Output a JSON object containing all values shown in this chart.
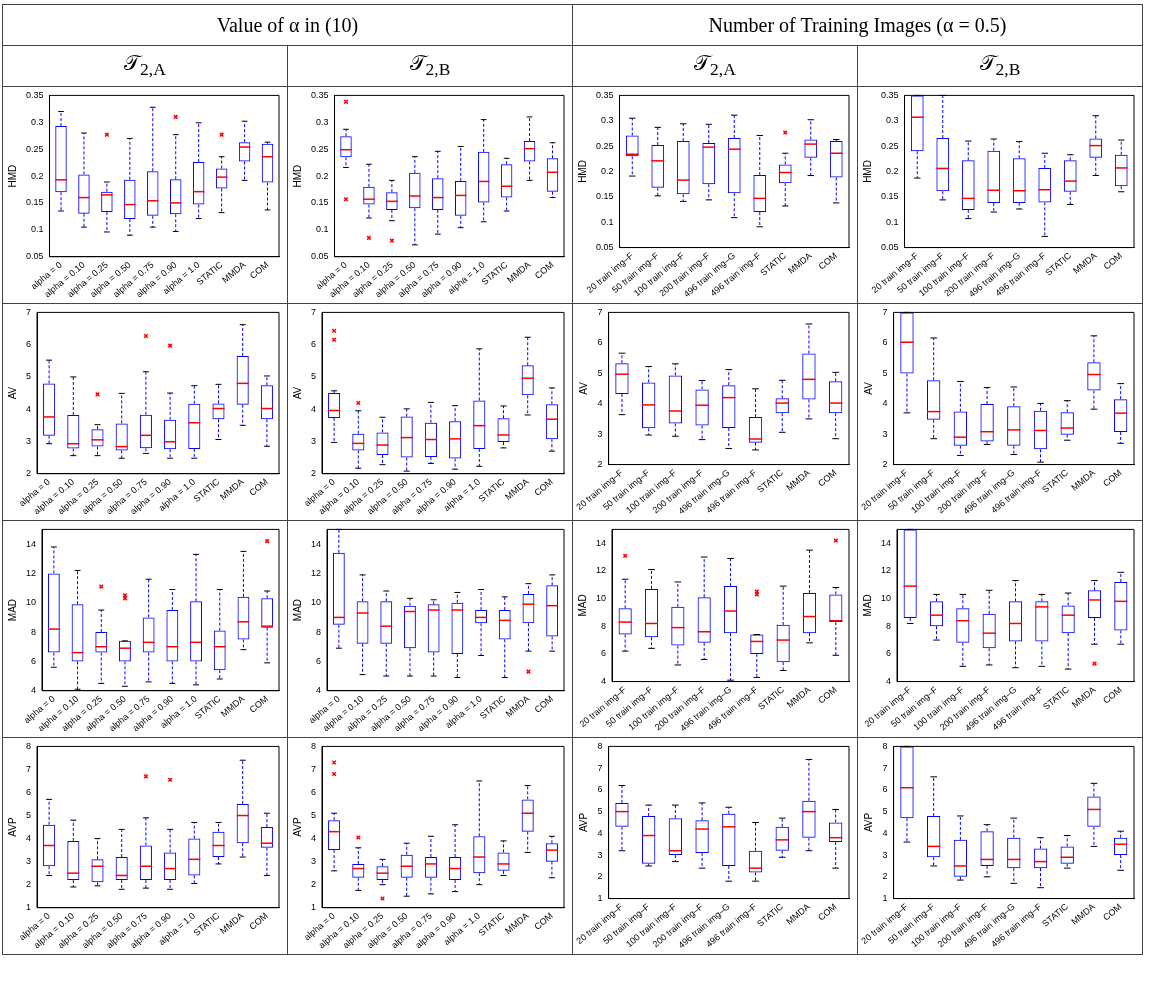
{
  "chart_data": [
    {
      "type": "box",
      "title": "𝒯$_{2,A}$",
      "subtitle": "Value of α in (10)",
      "ylabel": "HMD",
      "categories": [
        "alpha = 0",
        "alpha = 0.10",
        "alpha = 0.25",
        "alpha = 0.50",
        "alpha = 0.75",
        "alpha = 0.90",
        "alpha = 1.0",
        "STATIC",
        "MMDA",
        "COM"
      ],
      "ylim": [
        0.05,
        0.35
      ],
      "yticks": [
        0.05,
        0.1,
        0.15,
        0.2,
        0.25,
        0.3,
        0.35
      ],
      "grid": false,
      "legend": false,
      "series": [
        {
          "color": "#0000ff",
          "boxes": [
            {
              "low": 0.135,
              "q1": 0.17,
              "median": 0.193,
              "q3": 0.293,
              "high": 0.32
            },
            {
              "low": 0.105,
              "q1": 0.13,
              "median": 0.16,
              "q3": 0.203,
              "high": 0.28
            },
            {
              "low": 0.096,
              "q1": 0.133,
              "median": 0.165,
              "q3": 0.171,
              "high": 0.189,
              "outliers": [
                0.277
              ]
            },
            {
              "low": 0.09,
              "q1": 0.12,
              "median": 0.147,
              "q3": 0.193,
              "high": 0.27
            },
            {
              "low": 0.105,
              "q1": 0.126,
              "median": 0.154,
              "q3": 0.209,
              "high": 0.328
            },
            {
              "low": 0.097,
              "q1": 0.129,
              "median": 0.15,
              "q3": 0.194,
              "high": 0.277,
              "outliers": [
                0.31
              ]
            },
            {
              "low": 0.121,
              "q1": 0.147,
              "median": 0.171,
              "q3": 0.226,
              "high": 0.299
            },
            {
              "low": 0.132,
              "q1": 0.177,
              "median": 0.198,
              "q3": 0.214,
              "high": 0.236,
              "outliers": [
                0.277
              ]
            },
            {
              "low": 0.192,
              "q1": 0.227,
              "median": 0.254,
              "q3": 0.263,
              "high": 0.302
            },
            {
              "low": 0.137,
              "q1": 0.188,
              "median": 0.236,
              "q3": 0.26,
              "high": 0.263
            }
          ]
        }
      ]
    },
    {
      "type": "box",
      "title": "𝒯$_{2,B}$",
      "ylabel": "HMD",
      "categories": [
        "alpha = 0",
        "alpha = 0.10",
        "alpha = 0.25",
        "alpha = 0.50",
        "alpha = 0.75",
        "alpha = 0.90",
        "alpha = 1.0",
        "STATIC",
        "MMDA",
        "COM"
      ],
      "ylim": [
        0.05,
        0.35
      ],
      "yticks": [
        0.05,
        0.1,
        0.15,
        0.2,
        0.25,
        0.3,
        0.35
      ],
      "grid": false,
      "legend": false,
      "series": [
        {
          "color": "#0000ff",
          "boxes": [
            {
              "low": 0.216,
              "q1": 0.235,
              "median": 0.249,
              "q3": 0.274,
              "high": 0.287,
              "outliers": [
                0.338,
                0.157
              ]
            },
            {
              "low": 0.122,
              "q1": 0.147,
              "median": 0.157,
              "q3": 0.18,
              "high": 0.222,
              "outliers": [
                0.085
              ]
            },
            {
              "low": 0.117,
              "q1": 0.137,
              "median": 0.153,
              "q3": 0.17,
              "high": 0.192,
              "outliers": [
                0.08
              ]
            },
            {
              "low": 0.072,
              "q1": 0.14,
              "median": 0.163,
              "q3": 0.206,
              "high": 0.236
            },
            {
              "low": 0.092,
              "q1": 0.137,
              "median": 0.16,
              "q3": 0.196,
              "high": 0.246
            },
            {
              "low": 0.104,
              "q1": 0.126,
              "median": 0.164,
              "q3": 0.191,
              "high": 0.255
            },
            {
              "low": 0.115,
              "q1": 0.151,
              "median": 0.19,
              "q3": 0.245,
              "high": 0.305
            },
            {
              "low": 0.135,
              "q1": 0.16,
              "median": 0.181,
              "q3": 0.222,
              "high": 0.233
            },
            {
              "low": 0.192,
              "q1": 0.227,
              "median": 0.251,
              "q3": 0.265,
              "high": 0.31
            },
            {
              "low": 0.16,
              "q1": 0.171,
              "median": 0.207,
              "q3": 0.233,
              "high": 0.262
            }
          ]
        }
      ]
    },
    {
      "type": "box",
      "title": "𝒯$_{2,A}$",
      "subtitle": "Number of Training Images (α = 0.5)",
      "ylabel": "HMD",
      "categories": [
        "20 train img–F",
        "50 train img–F",
        "100 train img–F",
        "200 train img–F",
        "496 train img–G",
        "496 train img–F",
        "STATIC",
        "MMDA",
        "COM"
      ],
      "ylim": [
        0.05,
        0.35
      ],
      "yticks": [
        0.05,
        0.1,
        0.15,
        0.2,
        0.25,
        0.3,
        0.35
      ],
      "grid": false,
      "legend": false,
      "series": [
        {
          "color": "#0000ff",
          "boxes": [
            {
              "low": 0.191,
              "q1": 0.23,
              "median": 0.234,
              "q3": 0.271,
              "high": 0.305
            },
            {
              "low": 0.152,
              "q1": 0.168,
              "median": 0.221,
              "q3": 0.252,
              "high": 0.287
            },
            {
              "low": 0.141,
              "q1": 0.155,
              "median": 0.183,
              "q3": 0.26,
              "high": 0.294
            },
            {
              "low": 0.144,
              "q1": 0.175,
              "median": 0.248,
              "q3": 0.256,
              "high": 0.293
            },
            {
              "low": 0.109,
              "q1": 0.157,
              "median": 0.244,
              "q3": 0.266,
              "high": 0.311
            },
            {
              "low": 0.091,
              "q1": 0.12,
              "median": 0.147,
              "q3": 0.193,
              "high": 0.271
            },
            {
              "low": 0.132,
              "q1": 0.177,
              "median": 0.198,
              "q3": 0.214,
              "high": 0.236,
              "outliers": [
                0.277
              ]
            },
            {
              "low": 0.192,
              "q1": 0.227,
              "median": 0.254,
              "q3": 0.263,
              "high": 0.302
            },
            {
              "low": 0.138,
              "q1": 0.188,
              "median": 0.236,
              "q3": 0.26,
              "high": 0.263
            }
          ]
        }
      ]
    },
    {
      "type": "box",
      "title": "𝒯$_{2,B}$",
      "ylabel": "HMD",
      "categories": [
        "20 train img–F",
        "50 train img–F",
        "100 train img–F",
        "200 train img–F",
        "496 train img–G",
        "496 train img–F",
        "STATIC",
        "MMDA",
        "COM"
      ],
      "ylim": [
        0.05,
        0.35
      ],
      "yticks": [
        0.05,
        0.1,
        0.15,
        0.2,
        0.25,
        0.3,
        0.35
      ],
      "grid": false,
      "legend": false,
      "series": [
        {
          "color": "#0000ff",
          "boxes": [
            {
              "low": 0.187,
              "q1": 0.24,
              "median": 0.307,
              "q3": 0.35,
              "high": 0.35
            },
            {
              "low": 0.144,
              "q1": 0.161,
              "median": 0.206,
              "q3": 0.266,
              "high": 0.35
            },
            {
              "low": 0.107,
              "q1": 0.124,
              "median": 0.147,
              "q3": 0.222,
              "high": 0.26
            },
            {
              "low": 0.12,
              "q1": 0.138,
              "median": 0.163,
              "q3": 0.241,
              "high": 0.264
            },
            {
              "low": 0.126,
              "q1": 0.138,
              "median": 0.162,
              "q3": 0.226,
              "high": 0.259
            },
            {
              "low": 0.072,
              "q1": 0.139,
              "median": 0.164,
              "q3": 0.207,
              "high": 0.236
            },
            {
              "low": 0.135,
              "q1": 0.16,
              "median": 0.181,
              "q3": 0.222,
              "high": 0.233
            },
            {
              "low": 0.192,
              "q1": 0.227,
              "median": 0.251,
              "q3": 0.265,
              "high": 0.31
            },
            {
              "low": 0.16,
              "q1": 0.171,
              "median": 0.207,
              "q3": 0.233,
              "high": 0.262
            }
          ]
        }
      ]
    },
    {
      "type": "box",
      "ylabel": "AV",
      "categories": [
        "alpha = 0",
        "alpha = 0.10",
        "alpha = 0.25",
        "alpha = 0.50",
        "alpha = 0.75",
        "alpha = 0.90",
        "alpha = 1.0",
        "STATIC",
        "MMDA",
        "COM"
      ],
      "ylim": [
        2,
        7
      ],
      "yticks": [
        2,
        3,
        4,
        5,
        6,
        7
      ],
      "grid": false,
      "legend": false,
      "series": [
        {
          "color": "#0000ff",
          "boxes": [
            {
              "low": 2.93,
              "q1": 3.18,
              "median": 3.76,
              "q3": 4.8,
              "high": 5.52
            },
            {
              "low": 2.56,
              "q1": 2.78,
              "median": 2.93,
              "q3": 3.82,
              "high": 5.0
            },
            {
              "low": 2.56,
              "q1": 2.84,
              "median": 3.05,
              "q3": 3.38,
              "high": 3.52,
              "outliers": [
                4.46
              ]
            },
            {
              "low": 2.48,
              "q1": 2.72,
              "median": 2.84,
              "q3": 3.56,
              "high": 4.49
            },
            {
              "low": 2.63,
              "q1": 2.79,
              "median": 3.19,
              "q3": 3.83,
              "high": 5.16,
              "outliers": [
                6.27
              ]
            },
            {
              "low": 2.48,
              "q1": 2.76,
              "median": 2.99,
              "q3": 3.67,
              "high": 4.5,
              "outliers": [
                5.97
              ]
            },
            {
              "low": 2.48,
              "q1": 2.77,
              "median": 3.58,
              "q3": 4.17,
              "high": 4.73
            },
            {
              "low": 3.06,
              "q1": 3.69,
              "median": 4.02,
              "q3": 4.18,
              "high": 4.77
            },
            {
              "low": 3.5,
              "q1": 4.14,
              "median": 4.8,
              "q3": 5.65,
              "high": 6.62
            },
            {
              "low": 2.85,
              "q1": 3.69,
              "median": 4.02,
              "q3": 4.74,
              "high": 5.03
            }
          ]
        }
      ]
    },
    {
      "type": "box",
      "ylabel": "AV",
      "categories": [
        "alpha = 0",
        "alpha = 0.10",
        "alpha = 0.25",
        "alpha = 0.50",
        "alpha = 0.75",
        "alpha = 0.90",
        "alpha = 1.0",
        "STATIC",
        "MMDA",
        "COM"
      ],
      "ylim": [
        2,
        7
      ],
      "yticks": [
        2,
        3,
        4,
        5,
        6,
        7
      ],
      "grid": false,
      "legend": false,
      "series": [
        {
          "color": "#0000ff",
          "boxes": [
            {
              "low": 2.97,
              "q1": 3.73,
              "median": 3.96,
              "q3": 4.5,
              "high": 4.57,
              "outliers": [
                6.43,
                6.15
              ]
            },
            {
              "low": 2.17,
              "q1": 2.72,
              "median": 2.94,
              "q3": 3.24,
              "high": 3.95,
              "outliers": [
                4.19
              ]
            },
            {
              "low": 2.28,
              "q1": 2.58,
              "median": 2.89,
              "q3": 3.28,
              "high": 3.75
            },
            {
              "low": 2.08,
              "q1": 2.5,
              "median": 3.12,
              "q3": 3.77,
              "high": 4.01
            },
            {
              "low": 2.32,
              "q1": 2.52,
              "median": 3.06,
              "q3": 3.58,
              "high": 4.21
            },
            {
              "low": 2.14,
              "q1": 2.47,
              "median": 3.08,
              "q3": 3.63,
              "high": 4.11
            },
            {
              "low": 2.23,
              "q1": 2.77,
              "median": 3.49,
              "q3": 4.27,
              "high": 5.87
            },
            {
              "low": 2.8,
              "q1": 2.98,
              "median": 3.2,
              "q3": 3.72,
              "high": 4.1
            },
            {
              "low": 3.82,
              "q1": 4.43,
              "median": 4.96,
              "q3": 5.36,
              "high": 6.23
            },
            {
              "low": 2.7,
              "q1": 3.07,
              "median": 3.69,
              "q3": 4.15,
              "high": 4.66
            }
          ]
        }
      ]
    },
    {
      "type": "box",
      "ylabel": "AV",
      "categories": [
        "20 train img–F",
        "50 train img–F",
        "100 train img–F",
        "200 train img–F",
        "496 train img–G",
        "496 train img–F",
        "STATIC",
        "MMDA",
        "COM"
      ],
      "ylim": [
        2,
        7
      ],
      "yticks": [
        2,
        3,
        4,
        5,
        6,
        7
      ],
      "grid": false,
      "legend": false,
      "series": [
        {
          "color": "#0000ff",
          "boxes": [
            {
              "low": 3.64,
              "q1": 4.32,
              "median": 4.97,
              "q3": 5.33,
              "high": 5.66
            },
            {
              "low": 2.97,
              "q1": 3.19,
              "median": 3.96,
              "q3": 4.7,
              "high": 5.22
            },
            {
              "low": 2.93,
              "q1": 3.35,
              "median": 3.76,
              "q3": 4.93,
              "high": 5.31
            },
            {
              "low": 2.82,
              "q1": 3.28,
              "median": 3.95,
              "q3": 4.47,
              "high": 4.76
            },
            {
              "low": 2.53,
              "q1": 3.2,
              "median": 4.2,
              "q3": 4.61,
              "high": 5.12
            },
            {
              "low": 2.48,
              "q1": 2.72,
              "median": 2.84,
              "q3": 3.56,
              "high": 4.49
            },
            {
              "low": 3.06,
              "q1": 3.69,
              "median": 4.02,
              "q3": 4.18,
              "high": 4.77
            },
            {
              "low": 3.5,
              "q1": 4.14,
              "median": 4.8,
              "q3": 5.65,
              "high": 6.62
            },
            {
              "low": 2.85,
              "q1": 3.69,
              "median": 4.02,
              "q3": 4.74,
              "high": 5.03
            }
          ]
        }
      ]
    },
    {
      "type": "box",
      "ylabel": "AV",
      "categories": [
        "20 train img–F",
        "50 train img–F",
        "100 train img–F",
        "200 train img–F",
        "496 train img–G",
        "496 train img–F",
        "STATIC",
        "MMDA",
        "COM"
      ],
      "ylim": [
        2,
        7
      ],
      "yticks": [
        2,
        3,
        4,
        5,
        6,
        7
      ],
      "grid": false,
      "legend": false,
      "series": [
        {
          "color": "#0000ff",
          "boxes": [
            {
              "low": 3.7,
              "q1": 4.99,
              "median": 6.02,
              "q3": 7,
              "high": 7
            },
            {
              "low": 2.85,
              "q1": 3.47,
              "median": 3.74,
              "q3": 4.77,
              "high": 6.16
            },
            {
              "low": 2.3,
              "q1": 2.62,
              "median": 2.9,
              "q3": 3.74,
              "high": 4.73
            },
            {
              "low": 2.66,
              "q1": 2.76,
              "median": 3.08,
              "q3": 3.99,
              "high": 4.53
            },
            {
              "low": 2.33,
              "q1": 2.62,
              "median": 3.14,
              "q3": 3.92,
              "high": 4.55
            },
            {
              "low": 2.08,
              "q1": 2.5,
              "median": 3.12,
              "q3": 3.77,
              "high": 4.01
            },
            {
              "low": 2.8,
              "q1": 2.98,
              "median": 3.2,
              "q3": 3.72,
              "high": 4.1
            },
            {
              "low": 3.82,
              "q1": 4.43,
              "median": 4.96,
              "q3": 5.36,
              "high": 6.23
            },
            {
              "low": 2.7,
              "q1": 3.07,
              "median": 3.69,
              "q3": 4.15,
              "high": 4.66
            }
          ]
        }
      ]
    },
    {
      "type": "box",
      "ylabel": "MAD",
      "categories": [
        "alpha = 0",
        "alpha = 0.10",
        "alpha = 0.25",
        "alpha = 0.50",
        "alpha = 0.75",
        "alpha = 0.90",
        "alpha = 1.0",
        "STATIC",
        "MMDA",
        "COM"
      ],
      "ylim": [
        4,
        15
      ],
      "yticks": [
        4,
        6,
        8,
        10,
        12,
        14
      ],
      "grid": false,
      "legend": false,
      "series": [
        {
          "color": "#0000ff",
          "boxes": [
            {
              "low": 5.6,
              "q1": 6.6,
              "median": 8.2,
              "q3": 12.0,
              "high": 13.8
            },
            {
              "low": 4.1,
              "q1": 6.0,
              "median": 6.6,
              "q3": 9.9,
              "high": 12.2
            },
            {
              "low": 4.5,
              "q1": 6.6,
              "median": 7.0,
              "q3": 8.0,
              "high": 9.5,
              "outliers": [
                11.1
              ]
            },
            {
              "low": 4.3,
              "q1": 6.0,
              "median": 6.9,
              "q3": 7.4,
              "high": 7.4,
              "outliers": [
                10.5,
                10.3
              ]
            },
            {
              "low": 4.6,
              "q1": 6.6,
              "median": 7.3,
              "q3": 9.0,
              "high": 11.6
            },
            {
              "low": 4.5,
              "q1": 6.0,
              "median": 7.0,
              "q3": 9.5,
              "high": 10.9
            },
            {
              "low": 4.4,
              "q1": 6.0,
              "median": 7.3,
              "q3": 10.1,
              "high": 13.3
            },
            {
              "low": 4.8,
              "q1": 5.4,
              "median": 7.0,
              "q3": 8.1,
              "high": 10.9
            },
            {
              "low": 6.8,
              "q1": 7.5,
              "median": 8.7,
              "q3": 10.4,
              "high": 13.5
            },
            {
              "low": 5.9,
              "q1": 8.3,
              "median": 8.4,
              "q3": 10.3,
              "high": 10.8,
              "outliers": [
                14.2
              ]
            }
          ]
        }
      ]
    },
    {
      "type": "box",
      "ylabel": "MAD",
      "categories": [
        "alpha = 0",
        "alpha = 0.10",
        "alpha = 0.25",
        "alpha = 0.50",
        "alpha = 0.75",
        "alpha = 0.90",
        "alpha = 1.0",
        "STATIC",
        "MMDA",
        "COM"
      ],
      "ylim": [
        4,
        15
      ],
      "yticks": [
        4,
        6,
        8,
        10,
        12,
        14
      ],
      "grid": false,
      "legend": false,
      "series": [
        {
          "color": "#0000ff",
          "boxes": [
            {
              "low": 6.9,
              "q1": 8.5,
              "median": 9.0,
              "q3": 13.4,
              "high": 15
            },
            {
              "low": 5.1,
              "q1": 7.2,
              "median": 9.3,
              "q3": 10.1,
              "high": 11.9
            },
            {
              "low": 5.0,
              "q1": 7.2,
              "median": 8.4,
              "q3": 10.1,
              "high": 10.8
            },
            {
              "low": 5.0,
              "q1": 6.9,
              "median": 9.4,
              "q3": 9.8,
              "high": 10.3
            },
            {
              "low": 5.0,
              "q1": 6.6,
              "median": 9.5,
              "q3": 9.9,
              "high": 10.2
            },
            {
              "low": 4.9,
              "q1": 6.5,
              "median": 9.5,
              "q3": 10.0,
              "high": 10.7
            },
            {
              "low": 6.4,
              "q1": 8.6,
              "median": 9.0,
              "q3": 9.5,
              "high": 10.9
            },
            {
              "low": 4.9,
              "q1": 7.5,
              "median": 8.8,
              "q3": 9.5,
              "high": 10.4
            },
            {
              "low": 6.7,
              "q1": 8.6,
              "median": 9.9,
              "q3": 10.6,
              "high": 11.3,
              "outliers": [
                5.3
              ]
            },
            {
              "low": 6.7,
              "q1": 7.7,
              "median": 9.8,
              "q3": 11.2,
              "high": 11.9
            }
          ]
        }
      ]
    },
    {
      "type": "box",
      "ylabel": "MAD",
      "categories": [
        "20 train img–F",
        "50 train img–F",
        "100 train img–F",
        "200 train img–F",
        "496 train img–G",
        "496 train img–F",
        "STATIC",
        "MMDA",
        "COM"
      ],
      "ylim": [
        4,
        15
      ],
      "yticks": [
        4,
        6,
        8,
        10,
        12,
        14
      ],
      "grid": false,
      "legend": false,
      "series": [
        {
          "color": "#0000ff",
          "boxes": [
            {
              "low": 6.2,
              "q1": 7.4,
              "median": 8.3,
              "q3": 9.3,
              "high": 11.4,
              "outliers": [
                13.1
              ]
            },
            {
              "low": 6.4,
              "q1": 7.2,
              "median": 8.2,
              "q3": 10.7,
              "high": 12.1
            },
            {
              "low": 5.2,
              "q1": 6.6,
              "median": 7.9,
              "q3": 9.4,
              "high": 11.2
            },
            {
              "low": 5.6,
              "q1": 6.8,
              "median": 7.6,
              "q3": 10.1,
              "high": 13.0
            },
            {
              "low": 4.1,
              "q1": 7.5,
              "median": 9.1,
              "q3": 10.9,
              "high": 12.9
            },
            {
              "low": 4.3,
              "q1": 6.0,
              "median": 6.9,
              "q3": 7.4,
              "high": 7.4,
              "outliers": [
                10.5,
                10.3
              ]
            },
            {
              "low": 4.8,
              "q1": 5.4,
              "median": 7.0,
              "q3": 8.1,
              "high": 10.9
            },
            {
              "low": 6.8,
              "q1": 7.5,
              "median": 8.7,
              "q3": 10.4,
              "high": 13.5
            },
            {
              "low": 5.9,
              "q1": 8.3,
              "median": 8.4,
              "q3": 10.3,
              "high": 10.8,
              "outliers": [
                14.2
              ]
            }
          ]
        }
      ]
    },
    {
      "type": "box",
      "ylabel": "MAD",
      "categories": [
        "20 train img–F",
        "50 train img–F",
        "100 train img–F",
        "200 train img–F",
        "496 train img–G",
        "496 train img–F",
        "STATIC",
        "MMDA",
        "COM"
      ],
      "ylim": [
        4,
        15
      ],
      "yticks": [
        4,
        6,
        8,
        10,
        12,
        14
      ],
      "grid": false,
      "legend": false,
      "series": [
        {
          "color": "#0000ff",
          "boxes": [
            {
              "low": 8.2,
              "q1": 8.6,
              "median": 10.9,
              "q3": 15,
              "high": 15
            },
            {
              "low": 7.0,
              "q1": 8.0,
              "median": 8.8,
              "q3": 9.8,
              "high": 10.3
            },
            {
              "low": 5.1,
              "q1": 6.8,
              "median": 8.4,
              "q3": 9.3,
              "high": 10.3
            },
            {
              "low": 5.2,
              "q1": 6.4,
              "median": 7.5,
              "q3": 8.9,
              "high": 10.6
            },
            {
              "low": 5.0,
              "q1": 6.9,
              "median": 8.2,
              "q3": 9.8,
              "high": 11.3
            },
            {
              "low": 5.1,
              "q1": 6.9,
              "median": 9.4,
              "q3": 9.8,
              "high": 10.3
            },
            {
              "low": 4.9,
              "q1": 7.5,
              "median": 8.8,
              "q3": 9.5,
              "high": 10.4
            },
            {
              "low": 6.7,
              "q1": 8.6,
              "median": 9.9,
              "q3": 10.6,
              "high": 11.3,
              "outliers": [
                5.3
              ]
            },
            {
              "low": 6.7,
              "q1": 7.7,
              "median": 9.8,
              "q3": 11.2,
              "high": 11.9
            }
          ]
        }
      ]
    },
    {
      "type": "box",
      "ylabel": "AVP",
      "categories": [
        "alpha = 0",
        "alpha = 0.10",
        "alpha = 0.25",
        "alpha = 0.50",
        "alpha = 0.75",
        "alpha = 0.90",
        "alpha = 1.0",
        "STATIC",
        "MMDA",
        "COM"
      ],
      "ylim": [
        1,
        8
      ],
      "yticks": [
        1,
        2,
        3,
        4,
        5,
        6,
        7,
        8
      ],
      "grid": false,
      "legend": false,
      "series": [
        {
          "color": "#0000ff",
          "boxes": [
            {
              "low": 2.4,
              "q1": 2.8,
              "median": 3.7,
              "q3": 4.6,
              "high": 5.7
            },
            {
              "low": 1.9,
              "q1": 2.2,
              "median": 2.5,
              "q3": 3.9,
              "high": 4.8
            },
            {
              "low": 1.95,
              "q1": 2.1,
              "median": 2.8,
              "q3": 3.1,
              "high": 4.0
            },
            {
              "low": 1.8,
              "q1": 2.2,
              "median": 2.4,
              "q3": 3.2,
              "high": 4.4
            },
            {
              "low": 1.85,
              "q1": 2.2,
              "median": 2.8,
              "q3": 3.7,
              "high": 4.9,
              "outliers": [
                6.7
              ]
            },
            {
              "low": 1.8,
              "q1": 2.2,
              "median": 2.7,
              "q3": 3.4,
              "high": 4.4,
              "outliers": [
                6.55
              ]
            },
            {
              "low": 2.05,
              "q1": 2.4,
              "median": 3.1,
              "q3": 4.0,
              "high": 4.7
            },
            {
              "low": 2.9,
              "q1": 3.2,
              "median": 3.7,
              "q3": 4.3,
              "high": 4.7
            },
            {
              "low": 3.2,
              "q1": 3.8,
              "median": 5.0,
              "q3": 5.5,
              "high": 7.4
            },
            {
              "low": 2.4,
              "q1": 3.6,
              "median": 3.8,
              "q3": 4.5,
              "high": 5.1
            }
          ]
        }
      ]
    },
    {
      "type": "box",
      "ylabel": "AVP",
      "categories": [
        "alpha = 0",
        "alpha = 0.10",
        "alpha = 0.25",
        "alpha = 0.50",
        "alpha = 0.75",
        "alpha = 0.90",
        "alpha = 1.0",
        "STATIC",
        "MMDA",
        "COM"
      ],
      "ylim": [
        1,
        8
      ],
      "yticks": [
        1,
        2,
        3,
        4,
        5,
        6,
        7,
        8
      ],
      "grid": false,
      "legend": false,
      "series": [
        {
          "color": "#0000ff",
          "boxes": [
            {
              "low": 2.6,
              "q1": 3.5,
              "median": 4.3,
              "q3": 4.8,
              "high": 5.1,
              "outliers": [
                7.3,
                6.8
              ]
            },
            {
              "low": 1.75,
              "q1": 2.3,
              "median": 2.7,
              "q3": 2.9,
              "high": 3.6,
              "outliers": [
                4.05
              ]
            },
            {
              "low": 2.0,
              "q1": 2.2,
              "median": 2.5,
              "q3": 2.8,
              "high": 3.1,
              "outliers": [
                1.4
              ]
            },
            {
              "low": 1.5,
              "q1": 2.3,
              "median": 2.8,
              "q3": 3.3,
              "high": 3.8
            },
            {
              "low": 1.6,
              "q1": 2.3,
              "median": 2.9,
              "q3": 3.2,
              "high": 4.1
            },
            {
              "low": 1.7,
              "q1": 2.2,
              "median": 2.7,
              "q3": 3.2,
              "high": 4.6
            },
            {
              "low": 2.0,
              "q1": 2.5,
              "median": 3.2,
              "q3": 4.1,
              "high": 6.5
            },
            {
              "low": 2.4,
              "q1": 2.6,
              "median": 2.9,
              "q3": 3.4,
              "high": 3.9
            },
            {
              "low": 3.4,
              "q1": 4.3,
              "median": 5.1,
              "q3": 5.7,
              "high": 6.3
            },
            {
              "low": 2.3,
              "q1": 3.0,
              "median": 3.5,
              "q3": 3.8,
              "high": 4.1
            }
          ]
        }
      ]
    },
    {
      "type": "box",
      "ylabel": "AVP",
      "categories": [
        "20 train img–F",
        "50 train img–F",
        "100 train img–F",
        "200 train img–F",
        "496 train img–G",
        "496 train img–F",
        "STATIC",
        "MMDA",
        "COM"
      ],
      "ylim": [
        1,
        8
      ],
      "yticks": [
        1,
        2,
        3,
        4,
        5,
        6,
        7,
        8
      ],
      "grid": false,
      "legend": false,
      "series": [
        {
          "color": "#0000ff",
          "boxes": [
            {
              "low": 3.2,
              "q1": 4.3,
              "median": 5.0,
              "q3": 5.4,
              "high": 6.2
            },
            {
              "low": 2.5,
              "q1": 2.6,
              "median": 3.9,
              "q3": 4.8,
              "high": 5.3
            },
            {
              "low": 2.7,
              "q1": 3.0,
              "median": 3.2,
              "q3": 4.7,
              "high": 5.3
            },
            {
              "low": 2.4,
              "q1": 3.1,
              "median": 4.2,
              "q3": 4.6,
              "high": 5.4
            },
            {
              "low": 1.8,
              "q1": 2.5,
              "median": 4.3,
              "q3": 4.9,
              "high": 5.2
            },
            {
              "low": 1.8,
              "q1": 2.2,
              "median": 2.4,
              "q3": 3.2,
              "high": 4.5
            },
            {
              "low": 2.9,
              "q1": 3.2,
              "median": 3.7,
              "q3": 4.3,
              "high": 4.7
            },
            {
              "low": 3.2,
              "q1": 3.8,
              "median": 5.0,
              "q3": 5.5,
              "high": 7.4
            },
            {
              "low": 2.4,
              "q1": 3.6,
              "median": 3.8,
              "q3": 4.5,
              "high": 5.1
            }
          ]
        }
      ]
    },
    {
      "type": "box",
      "ylabel": "AVP",
      "categories": [
        "20 train img–F",
        "50 train img–F",
        "100 train img–F",
        "200 train img–F",
        "496 train img–G",
        "496 train img–F",
        "STATIC",
        "MMDA",
        "COM"
      ],
      "ylim": [
        1,
        8
      ],
      "yticks": [
        1,
        2,
        3,
        4,
        5,
        6,
        7,
        8
      ],
      "grid": false,
      "legend": false,
      "series": [
        {
          "color": "#0000ff",
          "boxes": [
            {
              "low": 3.6,
              "q1": 4.7,
              "median": 6.1,
              "q3": 8,
              "high": 8
            },
            {
              "low": 2.5,
              "q1": 2.9,
              "median": 3.4,
              "q3": 4.8,
              "high": 6.6
            },
            {
              "low": 1.85,
              "q1": 2.0,
              "median": 2.5,
              "q3": 3.7,
              "high": 4.8
            },
            {
              "low": 2.0,
              "q1": 2.5,
              "median": 2.8,
              "q3": 4.1,
              "high": 4.4
            },
            {
              "low": 1.7,
              "q1": 2.4,
              "median": 2.8,
              "q3": 3.8,
              "high": 4.7
            },
            {
              "low": 1.5,
              "q1": 2.4,
              "median": 2.7,
              "q3": 3.3,
              "high": 3.8
            },
            {
              "low": 2.4,
              "q1": 2.6,
              "median": 2.9,
              "q3": 3.4,
              "high": 3.9
            },
            {
              "low": 3.4,
              "q1": 4.3,
              "median": 5.1,
              "q3": 5.7,
              "high": 6.3
            },
            {
              "low": 2.3,
              "q1": 3.0,
              "median": 3.5,
              "q3": 3.8,
              "high": 4.1
            }
          ]
        }
      ]
    }
  ]
}
